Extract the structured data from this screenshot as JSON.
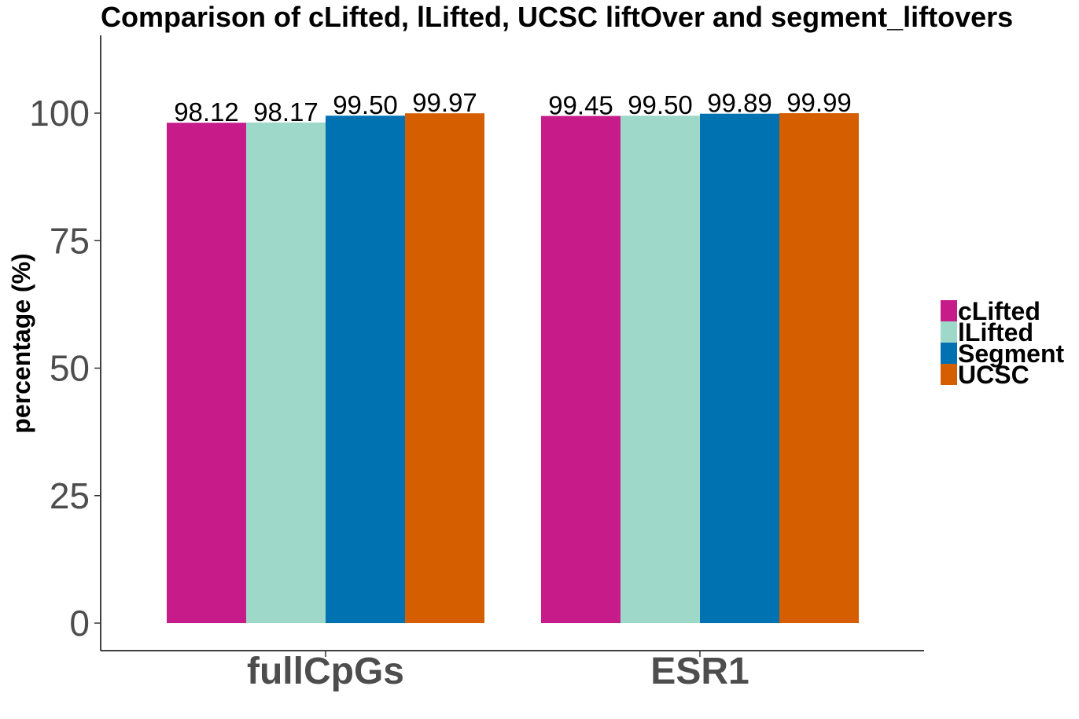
{
  "chart_data": {
    "type": "bar",
    "title": "Comparison of cLifted,  lLifted, UCSC liftOver and segment_liftovers",
    "xlabel": "",
    "ylabel": "percentage (%)",
    "categories": [
      "fullCpGs",
      "ESR1"
    ],
    "series": [
      {
        "name": "cLifted",
        "values": [
          98.12,
          99.45
        ],
        "color": "#C71B8A"
      },
      {
        "name": "lLifted",
        "values": [
          98.17,
          99.5
        ],
        "color": "#9DD8C9"
      },
      {
        "name": "Segment",
        "values": [
          99.5,
          99.89
        ],
        "color": "#0072B2"
      },
      {
        "name": "UCSC",
        "values": [
          99.97,
          99.99
        ],
        "color": "#D55E00"
      }
    ],
    "value_labels": [
      [
        "98.12",
        "99.45"
      ],
      [
        "98.17",
        "99.50"
      ],
      [
        "99.50",
        "99.89"
      ],
      [
        "99.97",
        "99.99"
      ]
    ],
    "ylim": [
      0,
      100
    ],
    "yticks": [
      0,
      25,
      50,
      75,
      100
    ],
    "grid": false,
    "legend_position": "right"
  }
}
